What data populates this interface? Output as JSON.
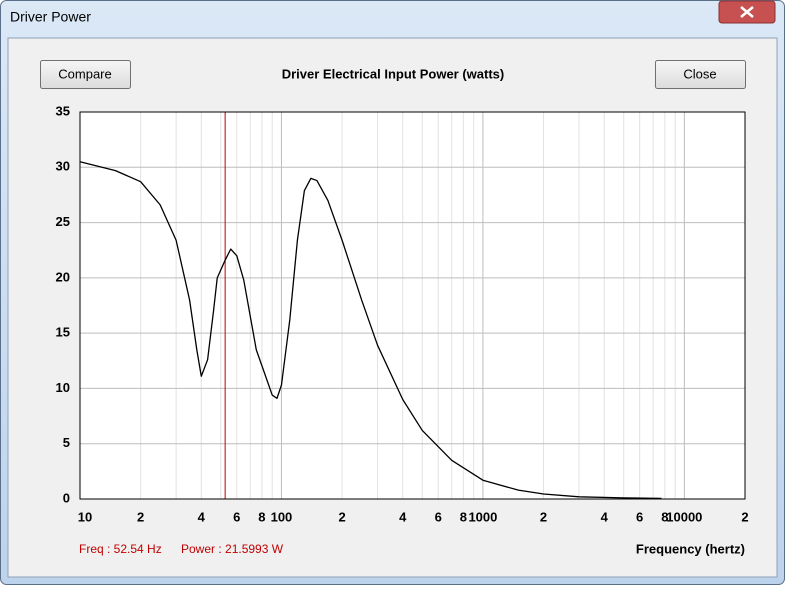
{
  "window": {
    "title": "Driver Power"
  },
  "buttons": {
    "compare": "Compare",
    "close": "Close"
  },
  "readout": {
    "freq": "Freq : 52.54 Hz",
    "power": "Power : 21.5993 W"
  },
  "chart_data": {
    "type": "line",
    "title": "Driver Electrical Input Power (watts)",
    "x_label": "Frequency (hertz)",
    "log_x": true,
    "grid": true,
    "x": [
      10,
      15,
      20,
      25,
      30,
      35,
      38,
      40,
      43,
      46,
      48,
      52.54,
      56,
      60,
      65,
      75,
      90,
      95,
      100,
      110,
      120,
      130,
      140,
      150,
      170,
      200,
      250,
      300,
      400,
      500,
      700,
      1000,
      1500,
      2000,
      3000,
      5000,
      7700
    ],
    "series": [
      {
        "name": "Power",
        "color": "#000000",
        "values": [
          30.5,
          29.7,
          28.7,
          26.6,
          23.4,
          18,
          13.5,
          11.1,
          12.6,
          17,
          20,
          21.6,
          22.6,
          22,
          19.8,
          13.5,
          9.4,
          9.1,
          10.3,
          16.2,
          23.4,
          27.9,
          29,
          28.8,
          27,
          23.4,
          18,
          13.9,
          9,
          6.2,
          3.5,
          1.7,
          0.8,
          0.45,
          0.2,
          0.1,
          0.05
        ]
      }
    ],
    "cursor_x": 52.54,
    "cursor_color": "#c00000",
    "xlim": [
      10,
      20000
    ],
    "xticks": [
      10,
      {
        "value": 20,
        "label": "2"
      },
      {
        "value": 40,
        "label": "4"
      },
      {
        "value": 60,
        "label": "6"
      },
      {
        "value": 80,
        "label": "8"
      },
      100,
      {
        "value": 200,
        "label": "2"
      },
      {
        "value": 400,
        "label": "4"
      },
      {
        "value": 600,
        "label": "6"
      },
      {
        "value": 800,
        "label": "8"
      },
      1000,
      {
        "value": 2000,
        "label": "2"
      },
      {
        "value": 4000,
        "label": "4"
      },
      {
        "value": 6000,
        "label": "6"
      },
      {
        "value": 8000,
        "label": "8"
      },
      10000,
      {
        "value": 20000,
        "label": "2"
      }
    ],
    "x_minor_gridlines": [
      30,
      50,
      70,
      90,
      300,
      500,
      700,
      900,
      3000,
      5000,
      7000,
      9000
    ],
    "ylim": [
      0,
      35
    ],
    "yticks": [
      0,
      5,
      10,
      15,
      20,
      25,
      30,
      35
    ]
  }
}
